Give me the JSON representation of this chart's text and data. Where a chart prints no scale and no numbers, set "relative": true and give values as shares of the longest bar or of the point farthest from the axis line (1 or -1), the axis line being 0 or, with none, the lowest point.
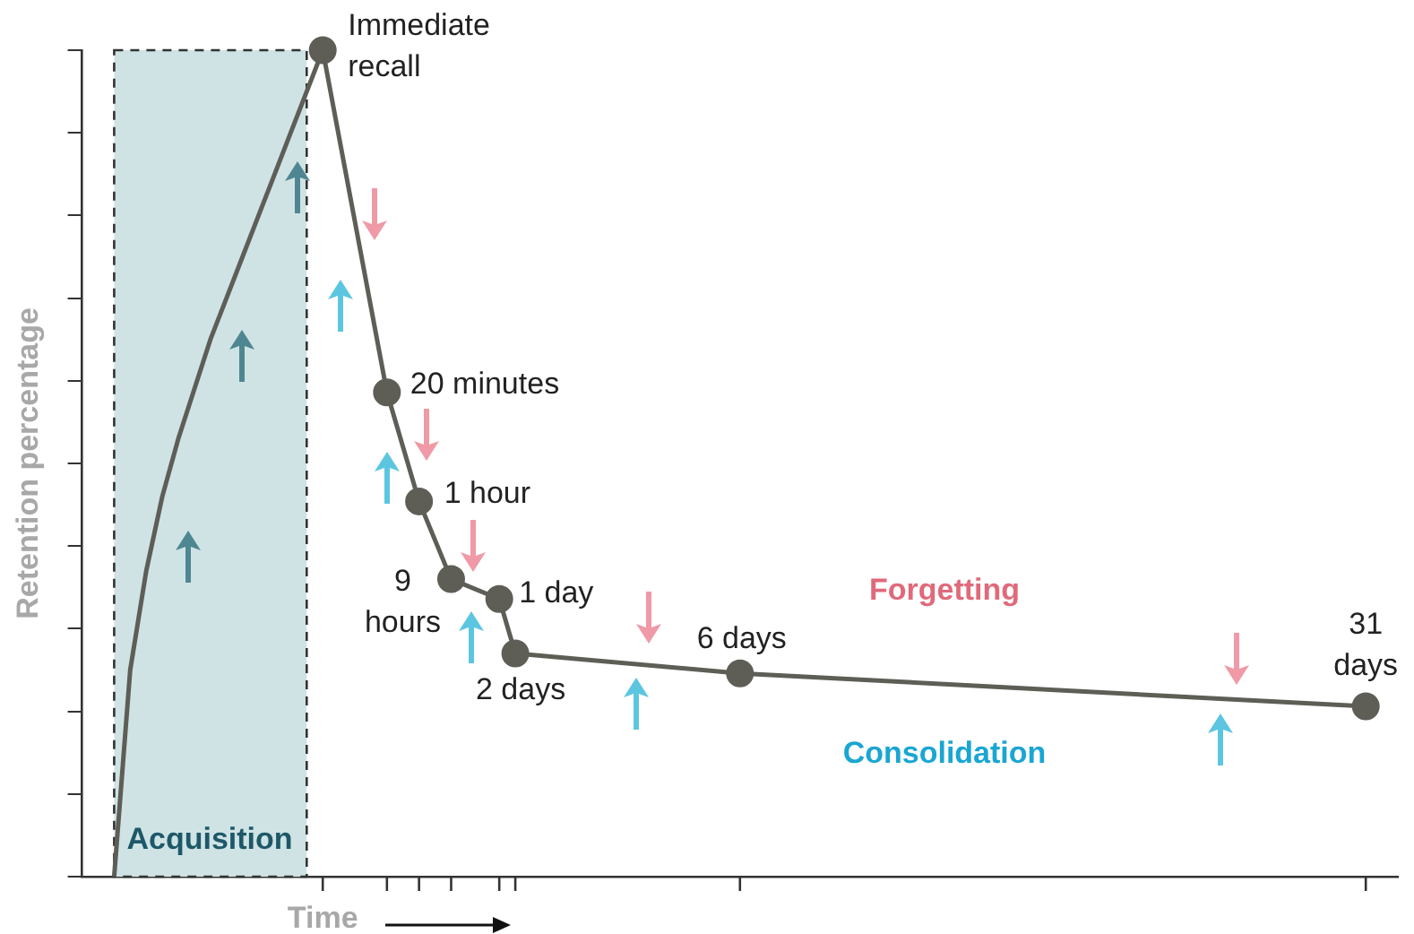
{
  "chart_data": {
    "type": "line",
    "relative": true,
    "xlabel": "Time",
    "ylabel": "Retention percentage",
    "categories": [
      null,
      null,
      null,
      null,
      null,
      null,
      null,
      null,
      null,
      null,
      null,
      null,
      null,
      null,
      null,
      null,
      null,
      null,
      null,
      null,
      null,
      null,
      null,
      null,
      null,
      null,
      null,
      null,
      null,
      null,
      null,
      null,
      null,
      null,
      null,
      null,
      null,
      null,
      null,
      null,
      null,
      null,
      null,
      null,
      null,
      null,
      null,
      null,
      null,
      null,
      null,
      null,
      null,
      null,
      null,
      null,
      null,
      null,
      null,
      null,
      null,
      null,
      null,
      null,
      null,
      null,
      null,
      null,
      null,
      null,
      null,
      null,
      null,
      null,
      null,
      null,
      null,
      null,
      null,
      null,
      null,
      null,
      null
    ],
    "tick_labels": false,
    "grid": false,
    "legend": false,
    "series": [
      {
        "color": "#5e5e57",
        "marker": "none",
        "values": [
          null,
          null,
          0,
          0.25,
          0.37,
          0.46,
          0.53,
          0.59,
          0.65,
          0.7,
          0.75,
          0.8,
          0.85,
          0.9,
          0.95,
          1,
          null,
          null,
          null,
          null,
          null,
          null,
          null,
          null,
          null,
          null,
          null,
          null,
          null,
          null,
          null,
          null,
          null,
          null,
          null,
          null,
          null,
          null,
          null,
          null,
          null,
          null,
          null,
          null,
          null,
          null,
          null,
          null,
          null,
          null,
          null,
          null,
          null,
          null,
          null,
          null,
          null,
          null,
          null,
          null,
          null,
          null,
          null,
          null,
          null,
          null,
          null,
          null,
          null,
          null,
          null,
          null,
          null,
          null,
          null,
          null,
          null,
          null,
          null,
          null,
          null,
          null,
          null
        ]
      },
      {
        "color": "#5e5e57",
        "marker": "circle",
        "values": [
          null,
          null,
          null,
          null,
          null,
          null,
          null,
          null,
          null,
          null,
          null,
          null,
          null,
          null,
          null,
          1,
          null,
          null,
          null,
          0.586,
          null,
          0.454,
          null,
          0.36,
          null,
          null,
          0.336,
          0.27,
          null,
          null,
          null,
          null,
          null,
          null,
          null,
          null,
          null,
          null,
          null,
          null,
          null,
          0.246,
          null,
          null,
          null,
          null,
          null,
          null,
          null,
          null,
          null,
          null,
          null,
          null,
          null,
          null,
          null,
          null,
          null,
          null,
          null,
          null,
          null,
          null,
          null,
          null,
          null,
          null,
          null,
          null,
          null,
          null,
          null,
          null,
          null,
          null,
          null,
          null,
          null,
          null,
          0.206,
          null,
          null
        ]
      }
    ],
    "annotations": [
      "Immediate recall",
      "20 minutes",
      "1 hour",
      "9 hours",
      "1 day",
      "2 days",
      "6 days",
      "31 days",
      "Acquisition",
      "Forgetting",
      "Consolidation"
    ]
  }
}
